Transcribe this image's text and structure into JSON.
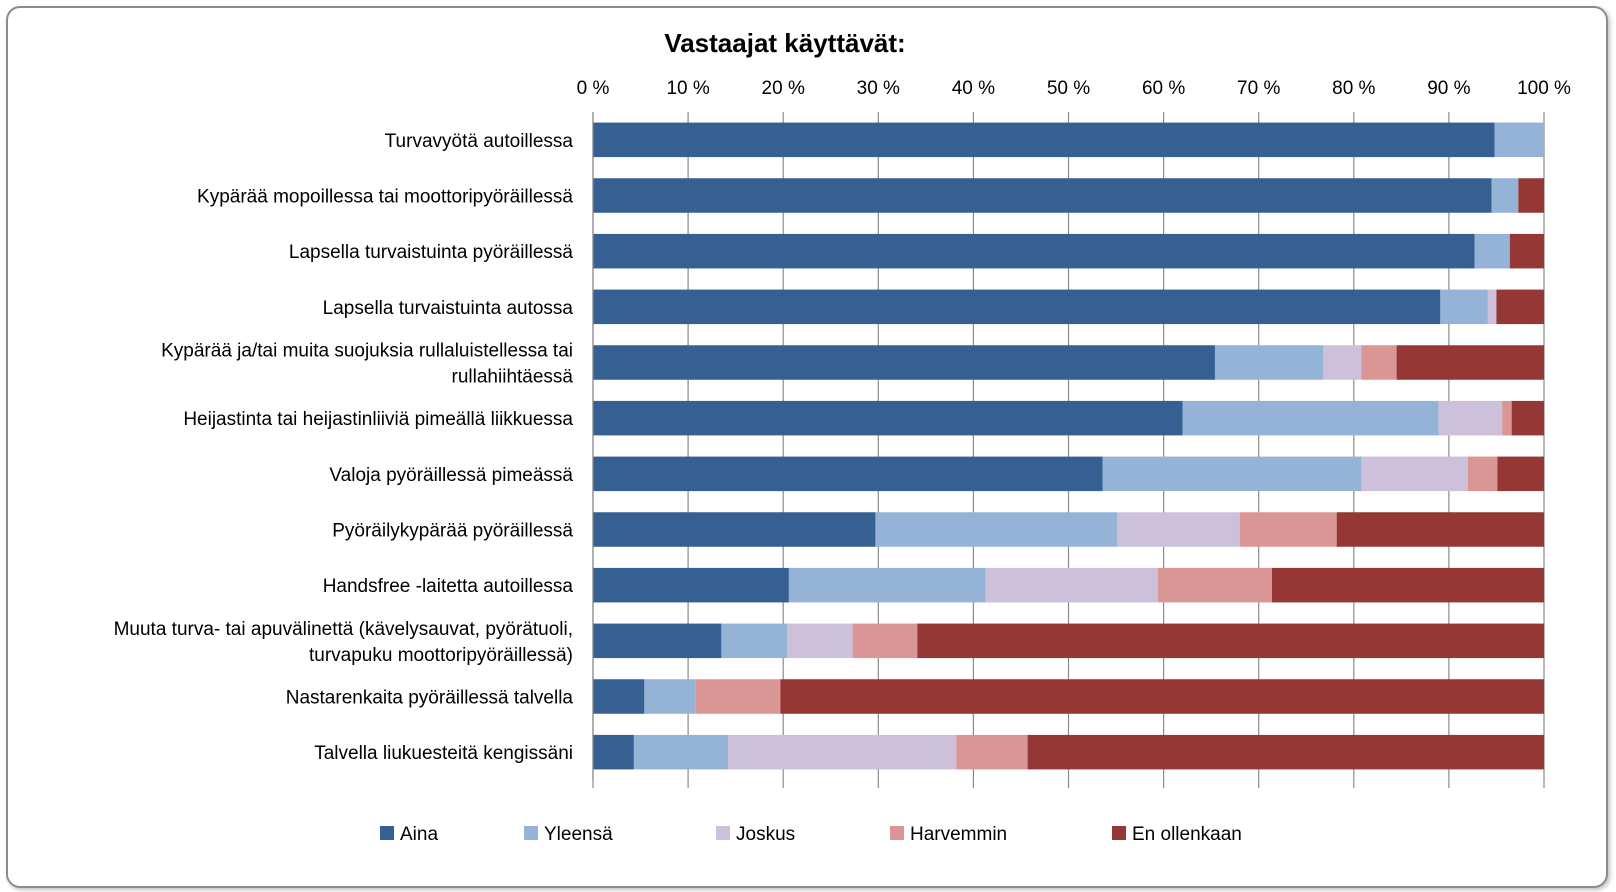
{
  "chart_data": {
    "type": "bar",
    "orientation": "horizontal",
    "stacked": true,
    "percent_stacked": true,
    "title": "Vastaajat käyttävät:",
    "xlim": [
      0,
      100
    ],
    "x_ticks": [
      "0 %",
      "10 %",
      "20 %",
      "30 %",
      "40 %",
      "50 %",
      "60 %",
      "70 %",
      "80 %",
      "90 %",
      "100 %"
    ],
    "grid": true,
    "legend_position": "bottom",
    "categories": [
      [
        "Turvavyötä autoillessa"
      ],
      [
        "Kypärää mopoillessa tai moottoripyöräillessä"
      ],
      [
        "Lapsella turvaistuinta pyöräillessä"
      ],
      [
        "Lapsella turvaistuinta autossa"
      ],
      [
        "Kypärää ja/tai muita suojuksia rullaluistellessa tai",
        "rullahiihtäessä"
      ],
      [
        "Heijastinta tai heijastinliiviä pimeällä liikkuessa"
      ],
      [
        "Valoja pyöräillessä pimeässä"
      ],
      [
        "Pyöräilykypärää pyöräillessä"
      ],
      [
        "Handsfree -laitetta autoillessa"
      ],
      [
        "Muuta turva- tai apuvälinettä (kävelysauvat, pyörätuoli,",
        "turvapuku moottoripyöräillessä)"
      ],
      [
        "Nastarenkaita pyöräillessä talvella"
      ],
      [
        "Talvella liukuesteitä kengissäni"
      ]
    ],
    "series": [
      {
        "name": "Aina",
        "color": "#366092",
        "values": [
          94.8,
          94.5,
          92.7,
          89.1,
          65.4,
          62.0,
          53.6,
          29.7,
          20.6,
          13.5,
          5.4,
          4.3
        ]
      },
      {
        "name": "Yleensä",
        "color": "#95b3d7",
        "values": [
          5.2,
          2.8,
          3.7,
          5.0,
          11.4,
          26.9,
          27.2,
          25.4,
          20.7,
          6.9,
          5.4,
          9.9
        ]
      },
      {
        "name": "Joskus",
        "color": "#ccc0da",
        "values": [
          0,
          0,
          0,
          0.9,
          4.0,
          6.7,
          11.2,
          12.9,
          18.1,
          6.9,
          0,
          24.0
        ]
      },
      {
        "name": "Harvemmin",
        "color": "#da9694",
        "values": [
          0,
          0,
          0,
          0,
          3.7,
          1.0,
          3.1,
          10.2,
          12.0,
          6.8,
          8.9,
          7.5
        ]
      },
      {
        "name": "En ollenkaan",
        "color": "#953735",
        "values": [
          0,
          2.7,
          3.6,
          5.0,
          15.5,
          3.4,
          4.9,
          21.8,
          28.6,
          65.9,
          80.3,
          54.3
        ]
      }
    ]
  }
}
